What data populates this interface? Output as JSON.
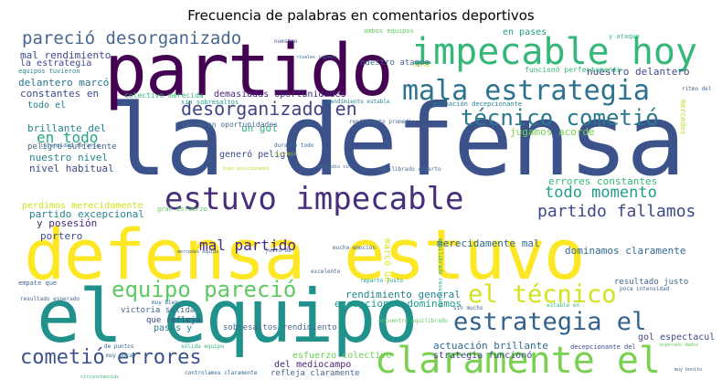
{
  "title": "Frecuencia de palabras en comentarios deportivos",
  "chart_data": {
    "type": "wordcloud",
    "title": "Frecuencia de palabras en comentarios deportivos",
    "palette": [
      "#fde725",
      "#b5de2b",
      "#6ece58",
      "#35b779",
      "#1f9e89",
      "#26828e",
      "#31688e",
      "#3e4989",
      "#482878",
      "#440154"
    ],
    "words": [
      {
        "text": "la defensa",
        "weight": 100,
        "color": "#3b528b"
      },
      {
        "text": "defensa estuvo",
        "weight": 78,
        "color": "#fde725"
      },
      {
        "text": "el equipo",
        "weight": 76,
        "color": "#21918c"
      },
      {
        "text": "partido",
        "weight": 74,
        "color": "#440154"
      },
      {
        "text": "impecable hoy",
        "weight": 40,
        "color": "#35b779"
      },
      {
        "text": "claramente el",
        "weight": 37,
        "color": "#7ad151"
      },
      {
        "text": "estuvo impecable",
        "weight": 34,
        "color": "#472d7b"
      },
      {
        "text": "mala estrategia",
        "weight": 31,
        "color": "#2c728e"
      },
      {
        "text": "estrategia el",
        "weight": 27,
        "color": "#33638d"
      },
      {
        "text": "el técnico",
        "weight": 26,
        "color": "#d2e21b"
      },
      {
        "text": "equipo pareció",
        "weight": 25,
        "color": "#5ec962"
      },
      {
        "text": "técnico cometió",
        "weight": 23,
        "color": "#2a788e"
      },
      {
        "text": "cometió errores",
        "weight": 22,
        "color": "#3b528b"
      },
      {
        "text": "desorganizado en",
        "weight": 19,
        "color": "#414487"
      },
      {
        "text": "pareció desorganizado",
        "weight": 18,
        "color": "#46678f"
      },
      {
        "text": "partido fallamos",
        "weight": 17,
        "color": "#3e4989"
      },
      {
        "text": "fallamos demasiadas",
        "weight": 16,
        "color": "#46678f"
      },
      {
        "text": "todo momento",
        "weight": 15,
        "color": "#1f9e89"
      },
      {
        "text": "mal partido",
        "weight": 14,
        "color": "#482878"
      },
      {
        "text": "en todo",
        "weight": 13,
        "color": "#22a884"
      },
      {
        "text": "marcó un",
        "weight": 7,
        "color": "#d8e219"
      },
      {
        "text": "gol espectacular",
        "weight": 7,
        "color": "#3e4989"
      },
      {
        "text": "demasiadas oportunidades",
        "weight": 7,
        "color": "#482878"
      },
      {
        "text": "rendimiento general",
        "weight": 7,
        "color": "#26828e"
      },
      {
        "text": "excepcional dominamos",
        "weight": 7,
        "color": "#1f9e89"
      },
      {
        "text": "merecidamente mal",
        "weight": 7,
        "color": "#31688e"
      },
      {
        "text": "dominamos claramente",
        "weight": 7,
        "color": "#31688e"
      },
      {
        "text": "actuación brillante",
        "weight": 6,
        "color": "#31688e"
      },
      {
        "text": "partido excepcional",
        "weight": 6,
        "color": "#26828e"
      },
      {
        "text": "errores constantes",
        "weight": 6,
        "color": "#35b779"
      },
      {
        "text": "un gol",
        "weight": 6,
        "color": "#35b779"
      },
      {
        "text": "nuestro nivel",
        "weight": 6,
        "color": "#26828e"
      },
      {
        "text": "nivel habitual",
        "weight": 6,
        "color": "#3e4989"
      },
      {
        "text": "brillante del",
        "weight": 6,
        "color": "#26828e"
      },
      {
        "text": "perdimos merecidamente",
        "weight": 6,
        "color": "#d2e21b"
      },
      {
        "text": "y posesión",
        "weight": 6,
        "color": "#482878"
      },
      {
        "text": "delantero marcó",
        "weight": 6,
        "color": "#2c728e"
      },
      {
        "text": "constantes en",
        "weight": 6,
        "color": "#3e4989"
      },
      {
        "text": "mal rendimiento",
        "weight": 6,
        "color": "#3e4989"
      },
      {
        "text": "nuestro delantero",
        "weight": 6,
        "color": "#3e4989"
      },
      {
        "text": "portero",
        "weight": 6,
        "color": "#3e4989"
      },
      {
        "text": "la estrategia",
        "weight": 5,
        "color": "#3e4989"
      },
      {
        "text": "todo el",
        "weight": 5,
        "color": "#26828e"
      },
      {
        "text": "jugamos acorde",
        "weight": 5,
        "color": "#7ad151"
      },
      {
        "text": "strategia funcionó",
        "weight": 5,
        "color": "#3e4989"
      },
      {
        "text": "pases y",
        "weight": 5,
        "color": "#26828e"
      },
      {
        "text": "que refleja",
        "weight": 4,
        "color": "#3e4989"
      },
      {
        "text": "victoria sólida",
        "weight": 4,
        "color": "#46678f"
      },
      {
        "text": "del mediocampo",
        "weight": 5,
        "color": "#482878"
      },
      {
        "text": "esfuerzo colectivo",
        "weight": 5,
        "color": "#6ece58"
      },
      {
        "text": "nuestro ataque",
        "weight": 4,
        "color": "#46678f"
      },
      {
        "text": "en pases",
        "weight": 4,
        "color": "#1f9e89"
      },
      {
        "text": "generó peligro",
        "weight": 4,
        "color": "#3e4989"
      },
      {
        "text": "peligro suficiente",
        "weight": 4,
        "color": "#46678f"
      },
      {
        "text": "resultado justo",
        "weight": 4,
        "color": "#46678f"
      },
      {
        "text": "sobresaltos rendimiento",
        "weight": 4,
        "color": "#46678f"
      },
      {
        "text": "refleja claramente",
        "weight": 4,
        "color": "#46678f"
      },
      {
        "text": "tuvieron oportunidades",
        "weight": 4,
        "color": "#46678f"
      },
      {
        "text": "colectivo merecida",
        "weight": 4,
        "color": "#35b779"
      },
      {
        "text": "funcionó perfectamente",
        "weight": 4,
        "color": "#35b779"
      },
      {
        "text": "sin sobresaltos",
        "weight": 3,
        "color": "#1f9e89"
      },
      {
        "text": "equipos tuvieron",
        "weight": 3,
        "color": "#26828e"
      },
      {
        "text": "decepcionante del",
        "weight": 3,
        "color": "#3e4989"
      },
      {
        "text": "ambos equipos",
        "weight": 3,
        "color": "#5ec962"
      },
      {
        "text": "rendimiento estable",
        "weight": 3,
        "color": "#26828e"
      },
      {
        "text": "actuación decepcionante",
        "weight": 3,
        "color": "#26828e"
      },
      {
        "text": "rendimiento promedio",
        "weight": 3,
        "color": "#46678f"
      },
      {
        "text": "mucha emoción",
        "weight": 3,
        "color": "#46678f"
      },
      {
        "text": "reparto justo",
        "weight": 3,
        "color": "#1f9e89"
      },
      {
        "text": "equilibrado reparto",
        "weight": 3,
        "color": "#46678f"
      },
      {
        "text": "equilibrado resultado",
        "weight": 3,
        "color": "#1f9e89"
      },
      {
        "text": "encuentro equilibrado",
        "weight": 3,
        "color": "#5ec962"
      },
      {
        "text": "gran esfuerzo",
        "weight": 3,
        "color": "#5ec962"
      },
      {
        "text": "durante todo",
        "weight": 3,
        "color": "#31688e"
      },
      {
        "text": "intensidad durante",
        "weight": 3,
        "color": "#31688e"
      },
      {
        "text": "empate que",
        "weight": 3,
        "color": "#46678f"
      },
      {
        "text": "muy bien",
        "weight": 3,
        "color": "#31688e"
      },
      {
        "text": "de puntos",
        "weight": 3,
        "color": "#31688e"
      },
      {
        "text": "sólida equipo",
        "weight": 3,
        "color": "#35b779"
      },
      {
        "text": "controlamos claramente",
        "weight": 3,
        "color": "#31688e"
      },
      {
        "text": "poca intensidad",
        "weight": 3,
        "color": "#46678f"
      },
      {
        "text": "estable en",
        "weight": 3,
        "color": "#35b779"
      },
      {
        "text": "sin mucho",
        "weight": 3,
        "color": "#46678f"
      },
      {
        "text": "justo de",
        "weight": 3,
        "color": "#46678f"
      },
      {
        "text": "excelente",
        "weight": 3,
        "color": "#46678f"
      },
      {
        "text": "resultado esperado",
        "weight": 3,
        "color": "#46678f"
      },
      {
        "text": "y ataque",
        "weight": 3,
        "color": "#35b779"
      },
      {
        "text": "ritmo del",
        "weight": 3,
        "color": "#46678f"
      },
      {
        "text": "nuestro",
        "weight": 2,
        "color": "#3e4989"
      },
      {
        "text": "mercedes",
        "weight": 2,
        "color": "#b5de2b"
      },
      {
        "text": "acorde",
        "weight": 2,
        "color": "#b5de2b"
      },
      {
        "text": "muy poca",
        "weight": 2,
        "color": "#31688e"
      },
      {
        "text": "esperado dados",
        "weight": 2,
        "color": "#5ec962"
      },
      {
        "text": "muy bonito",
        "weight": 2,
        "color": "#46678f"
      },
      {
        "text": "circunstancias",
        "weight": 2,
        "color": "#35b779"
      },
      {
        "text": "promedio sin",
        "weight": 2,
        "color": "#46678f"
      },
      {
        "text": "nos dejó",
        "weight": 2,
        "color": "#b5de2b"
      },
      {
        "text": "bien posicionados",
        "weight": 2,
        "color": "#b5de2b"
      },
      {
        "text": "mercedes equipo",
        "weight": 2,
        "color": "#46678f"
      },
      {
        "text": "rivales jugamos",
        "weight": 2,
        "color": "#31688e"
      }
    ],
    "layout": "wordcloud"
  }
}
